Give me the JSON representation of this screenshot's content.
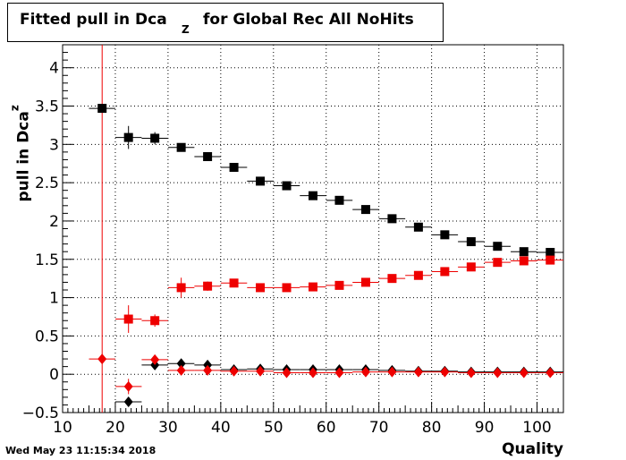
{
  "chart_data": {
    "type": "scatter",
    "title": "Fitted pull in Dca",
    "title_subscript": "Z",
    "title_suffix": " for Global Rec All NoHits",
    "xlabel": "Quality",
    "ylabel": "pull in Dca",
    "ylabel_subscript": "z",
    "xlim": [
      10,
      105
    ],
    "ylim": [
      -0.5,
      4.3
    ],
    "x_ticks": [
      10,
      20,
      30,
      40,
      50,
      60,
      70,
      80,
      90,
      100
    ],
    "y_ticks": [
      -0.5,
      0,
      0.5,
      1,
      1.5,
      2,
      2.5,
      3,
      3.5,
      4
    ],
    "grid": true,
    "vertical_line_x": 17.5,
    "x": [
      17.5,
      22.5,
      27.5,
      32.5,
      37.5,
      42.5,
      47.5,
      52.5,
      57.5,
      62.5,
      67.5,
      72.5,
      77.5,
      82.5,
      87.5,
      92.5,
      97.5,
      102.5
    ],
    "x_halfwidth": 2.5,
    "series": [
      {
        "marker": "square",
        "color": "#000000",
        "values": [
          3.47,
          3.09,
          3.08,
          2.96,
          2.84,
          2.7,
          2.52,
          2.46,
          2.33,
          2.27,
          2.15,
          2.03,
          1.92,
          1.82,
          1.73,
          1.67,
          1.6,
          1.59
        ],
        "errors": [
          0.03,
          0.15,
          0.08,
          0.05,
          0.04,
          0.04,
          0.03,
          0.03,
          0.03,
          0.03,
          0.03,
          0.03,
          0.03,
          0.03,
          0.03,
          0.03,
          0.03,
          0.03
        ]
      },
      {
        "marker": "square",
        "color": "#ee0000",
        "values": [
          null,
          0.72,
          0.7,
          1.13,
          1.15,
          1.19,
          1.13,
          1.13,
          1.14,
          1.16,
          1.2,
          1.25,
          1.29,
          1.34,
          1.4,
          1.46,
          1.48,
          1.49
        ],
        "errors": [
          null,
          0.18,
          0.08,
          0.13,
          0.06,
          0.04,
          0.03,
          0.03,
          0.03,
          0.03,
          0.03,
          0.03,
          0.03,
          0.03,
          0.03,
          0.03,
          0.03,
          0.03
        ]
      },
      {
        "marker": "diamond",
        "color": "#000000",
        "values": [
          null,
          -0.36,
          0.12,
          0.14,
          0.12,
          0.06,
          0.07,
          0.06,
          0.06,
          0.06,
          0.06,
          0.05,
          0.04,
          0.04,
          0.03,
          0.03,
          0.03,
          0.03
        ],
        "errors": [
          null,
          0.05,
          0.04,
          0.03,
          0.03,
          0.02,
          0.02,
          0.02,
          0.02,
          0.02,
          0.02,
          0.02,
          0.02,
          0.02,
          0.02,
          0.02,
          0.02,
          0.02
        ]
      },
      {
        "marker": "diamond",
        "color": "#ee0000",
        "values": [
          0.2,
          -0.16,
          0.19,
          0.05,
          0.05,
          0.04,
          0.04,
          0.02,
          0.02,
          0.02,
          0.03,
          0.03,
          0.03,
          0.03,
          0.02,
          0.02,
          0.02,
          0.02
        ],
        "errors": [
          0.02,
          0.1,
          0.04,
          0.02,
          0.02,
          0.02,
          0.02,
          0.02,
          0.02,
          0.02,
          0.02,
          0.02,
          0.02,
          0.02,
          0.02,
          0.02,
          0.02,
          0.02
        ]
      }
    ]
  },
  "footer": {
    "timestamp": "Wed May 23 11:15:34 2018"
  }
}
